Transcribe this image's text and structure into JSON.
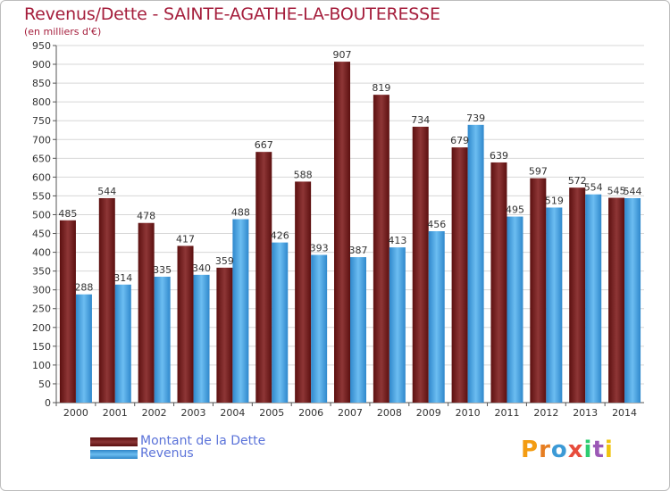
{
  "title": "Revenus/Dette - SAINTE-AGATHE-LA-BOUTERESSE",
  "subtitle": "(en milliers d'€)",
  "logo_text": "Proxiti",
  "colors": {
    "dette": "#7a1f1f",
    "revenus": "#4aa3e0",
    "text": "#a51e3c",
    "legend": "#5b73d9",
    "grid": "#d7d7d7"
  },
  "chart_data": {
    "type": "bar",
    "title": "Revenus/Dette - SAINTE-AGATHE-LA-BOUTERESSE",
    "ylabel": "(en milliers d'€)",
    "ylim": [
      0,
      950
    ],
    "ytick_step": 50,
    "grid": true,
    "legend_position": "bottom-left",
    "categories": [
      "2000",
      "2001",
      "2002",
      "2003",
      "2004",
      "2005",
      "2006",
      "2007",
      "2008",
      "2009",
      "2010",
      "2011",
      "2012",
      "2013",
      "2014"
    ],
    "series": [
      {
        "name": "Montant de la Dette",
        "values": [
          485,
          544,
          478,
          417,
          359,
          667,
          588,
          907,
          819,
          734,
          679,
          639,
          597,
          572,
          545
        ]
      },
      {
        "name": "Revenus",
        "values": [
          288,
          314,
          335,
          340,
          488,
          426,
          393,
          387,
          413,
          456,
          739,
          495,
          519,
          554,
          544
        ]
      }
    ]
  }
}
